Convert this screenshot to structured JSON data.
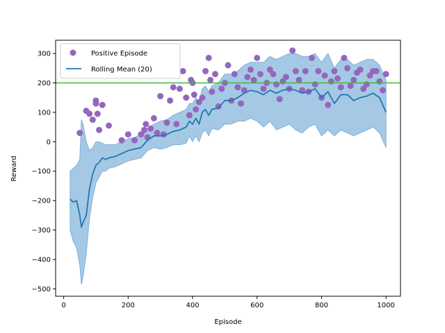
{
  "chart_data": {
    "type": "line",
    "title": "",
    "xlabel": "Episode",
    "ylabel": "Reward",
    "xlim": [
      -25,
      1045
    ],
    "ylim": [
      -525,
      345
    ],
    "xticks": [
      0,
      200,
      400,
      600,
      800,
      1000
    ],
    "yticks": [
      -500,
      -400,
      -300,
      -200,
      -100,
      0,
      100,
      200,
      300
    ],
    "grid": false,
    "legend_position": "top-left",
    "target_line": {
      "y": 200,
      "color": "#3cb93c"
    },
    "colors": {
      "points": "#9467bd",
      "mean": "#1f77b4",
      "band": "#7fb0d8"
    },
    "series": [
      {
        "name": "Positive Episode",
        "kind": "scatter",
        "x": [
          50,
          70,
          80,
          90,
          100,
          100,
          105,
          110,
          120,
          140,
          180,
          200,
          220,
          240,
          250,
          255,
          260,
          270,
          280,
          290,
          300,
          310,
          320,
          330,
          340,
          350,
          360,
          370,
          380,
          390,
          395,
          400,
          405,
          410,
          420,
          430,
          440,
          450,
          455,
          460,
          470,
          480,
          490,
          500,
          510,
          520,
          530,
          540,
          550,
          560,
          570,
          580,
          590,
          600,
          610,
          620,
          630,
          640,
          650,
          660,
          670,
          680,
          690,
          700,
          710,
          720,
          730,
          740,
          750,
          760,
          770,
          780,
          790,
          800,
          810,
          820,
          830,
          840,
          850,
          860,
          870,
          880,
          890,
          900,
          910,
          920,
          930,
          940,
          950,
          960,
          970,
          980,
          990,
          1000
        ],
        "y": [
          30,
          105,
          95,
          75,
          130,
          140,
          95,
          40,
          125,
          55,
          5,
          25,
          5,
          25,
          40,
          60,
          15,
          45,
          80,
          30,
          155,
          25,
          65,
          140,
          185,
          60,
          180,
          240,
          150,
          90,
          210,
          200,
          160,
          110,
          135,
          150,
          240,
          285,
          210,
          170,
          230,
          120,
          180,
          200,
          260,
          140,
          230,
          185,
          130,
          175,
          220,
          245,
          210,
          285,
          230,
          180,
          200,
          245,
          230,
          195,
          145,
          205,
          220,
          180,
          310,
          240,
          210,
          175,
          240,
          170,
          285,
          195,
          240,
          150,
          225,
          125,
          205,
          240,
          215,
          185,
          285,
          250,
          190,
          210,
          235,
          245,
          180,
          195,
          225,
          240,
          240,
          205,
          175,
          230
        ]
      },
      {
        "name": "Rolling Mean (20)",
        "kind": "line",
        "x": [
          20,
          30,
          40,
          50,
          55,
          60,
          70,
          80,
          90,
          100,
          110,
          120,
          130,
          140,
          160,
          180,
          200,
          220,
          240,
          260,
          280,
          300,
          320,
          340,
          360,
          380,
          390,
          400,
          410,
          420,
          430,
          440,
          450,
          460,
          480,
          500,
          520,
          540,
          560,
          580,
          600,
          620,
          640,
          660,
          680,
          700,
          720,
          740,
          760,
          780,
          800,
          820,
          840,
          860,
          880,
          900,
          920,
          940,
          960,
          980,
          1000
        ],
        "y": [
          -195,
          -205,
          -200,
          -250,
          -290,
          -275,
          -250,
          -160,
          -110,
          -80,
          -70,
          -55,
          -60,
          -55,
          -50,
          -40,
          -30,
          -25,
          -20,
          5,
          20,
          20,
          25,
          35,
          40,
          50,
          70,
          60,
          80,
          60,
          100,
          110,
          90,
          110,
          115,
          140,
          140,
          150,
          165,
          175,
          170,
          160,
          175,
          165,
          175,
          180,
          175,
          165,
          170,
          180,
          150,
          170,
          130,
          160,
          160,
          140,
          150,
          155,
          165,
          150,
          100
        ]
      }
    ],
    "band": {
      "x": [
        20,
        30,
        40,
        50,
        55,
        60,
        70,
        80,
        90,
        100,
        110,
        120,
        130,
        140,
        160,
        180,
        200,
        220,
        240,
        260,
        280,
        300,
        320,
        340,
        360,
        380,
        390,
        400,
        410,
        420,
        430,
        440,
        450,
        460,
        480,
        500,
        520,
        540,
        560,
        580,
        600,
        620,
        640,
        660,
        680,
        700,
        720,
        740,
        760,
        780,
        800,
        820,
        840,
        860,
        880,
        900,
        920,
        940,
        960,
        980,
        1000
      ],
      "lower": [
        -300,
        -340,
        -360,
        -420,
        -485,
        -460,
        -380,
        -260,
        -190,
        -140,
        -120,
        -100,
        -100,
        -90,
        -85,
        -75,
        -65,
        -60,
        -55,
        -30,
        -20,
        -25,
        -20,
        -10,
        -10,
        -5,
        20,
        0,
        20,
        0,
        30,
        40,
        20,
        45,
        40,
        60,
        60,
        70,
        70,
        80,
        70,
        50,
        70,
        40,
        50,
        60,
        40,
        30,
        50,
        60,
        20,
        40,
        20,
        40,
        30,
        20,
        30,
        40,
        50,
        30,
        -20
      ],
      "upper": [
        -100,
        -90,
        -80,
        -60,
        75,
        60,
        0,
        -30,
        -20,
        0,
        0,
        -5,
        -10,
        -10,
        -10,
        0,
        10,
        15,
        25,
        45,
        60,
        70,
        75,
        90,
        100,
        110,
        130,
        130,
        150,
        130,
        180,
        190,
        170,
        190,
        200,
        230,
        230,
        240,
        260,
        270,
        270,
        270,
        290,
        280,
        290,
        300,
        300,
        290,
        290,
        300,
        270,
        300,
        250,
        280,
        280,
        260,
        270,
        280,
        280,
        260,
        210
      ]
    }
  }
}
